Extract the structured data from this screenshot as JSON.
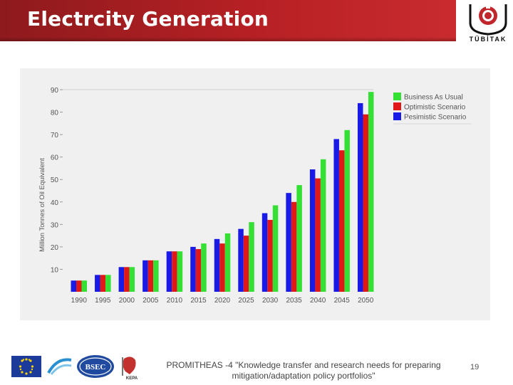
{
  "slide": {
    "title": "Electrcity Generation",
    "logo_text": "TÜBİTAK",
    "footer_text": "PROMITHEAS -4 \"Knowledge transfer and research needs for preparing mitigation/adaptation policy portfolios\"",
    "page_number": "19",
    "footer_logo_labels": {
      "bsec": "BSEC",
      "kepa": "KEPA"
    }
  },
  "colors": {
    "title_bar": "#b62024",
    "bau": "#33e033",
    "optimistic": "#e01818",
    "pessimistic": "#1a1ae6"
  },
  "chart_data": {
    "type": "bar",
    "title": "",
    "xlabel": "",
    "ylabel": "Million Tonnes of Oil Equivalent",
    "ylim": [
      0,
      90
    ],
    "yticks": [
      10,
      20,
      30,
      40,
      50,
      60,
      70,
      80,
      90
    ],
    "grid": false,
    "legend_position": "top-right",
    "categories": [
      "1990",
      "1995",
      "2000",
      "2005",
      "2010",
      "2015",
      "2020",
      "2025",
      "2030",
      "2035",
      "2040",
      "2045",
      "2050"
    ],
    "series": [
      {
        "name": "Pesimistic Scenario",
        "color": "#1a1ae6",
        "values": [
          5,
          7.5,
          11,
          14,
          18,
          20,
          23.5,
          28,
          35,
          44,
          54.5,
          68,
          84
        ]
      },
      {
        "name": "Optimistic Scenario",
        "color": "#e01818",
        "values": [
          5,
          7.5,
          11,
          14,
          18,
          19,
          21.5,
          25,
          32,
          40,
          50.5,
          63,
          79
        ]
      },
      {
        "name": "Business As Usual",
        "color": "#33e033",
        "values": [
          5,
          7.5,
          11,
          14,
          18,
          21.5,
          26,
          31,
          38.5,
          47.5,
          59,
          72,
          89
        ]
      }
    ],
    "legend": [
      "Business As Usual",
      "Optimistic Scenario",
      "Pesimistic Scenario"
    ]
  }
}
